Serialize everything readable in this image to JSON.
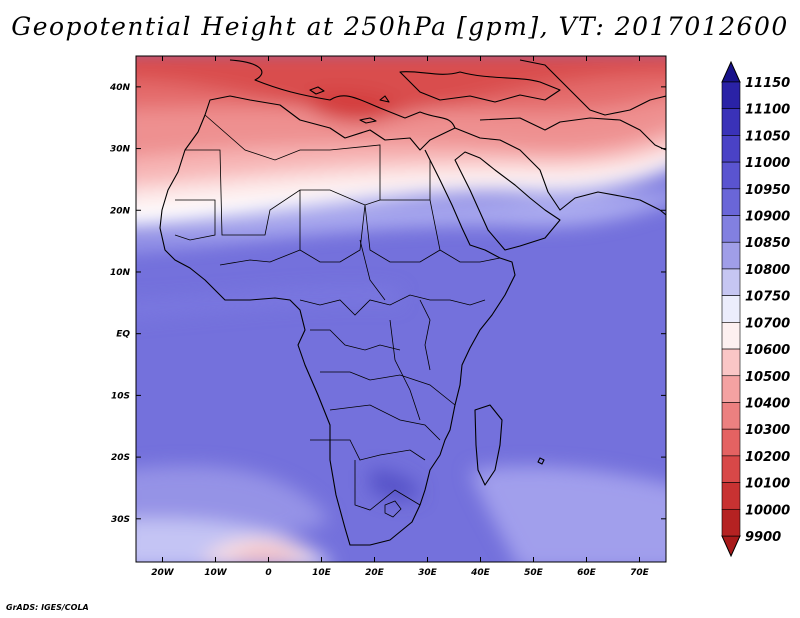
{
  "title": "Geopotential Height at 250hPa [gpm], VT: 2017012600",
  "credit": "GrADS: IGES/COLA",
  "map": {
    "variable": "Geopotential Height",
    "level": "250hPa",
    "units": "gpm",
    "valid_time": "2017012600",
    "lon_ticks": [
      "20W",
      "10W",
      "0",
      "10E",
      "20E",
      "30E",
      "40E",
      "50E",
      "60E",
      "70E"
    ],
    "lat_ticks": [
      "40N",
      "30N",
      "20N",
      "10N",
      "EQ",
      "10S",
      "20S",
      "30S"
    ]
  },
  "colorbar": {
    "labels": [
      "11150",
      "11100",
      "11050",
      "11000",
      "10950",
      "10900",
      "10850",
      "10800",
      "10750",
      "10700",
      "10600",
      "10500",
      "10400",
      "10300",
      "10200",
      "10100",
      "10000",
      "9900"
    ],
    "colors": [
      "#1a1490",
      "#2a22a6",
      "#3a32b8",
      "#4a42c6",
      "#5a54d0",
      "#6a66d8",
      "#8280e0",
      "#a09ee8",
      "#c6c6f2",
      "#ecedfc",
      "#fdf0f0",
      "#fac6c6",
      "#f4a2a2",
      "#ec8080",
      "#e46262",
      "#d84848",
      "#c83232",
      "#b52222"
    ],
    "top_arrow_color": "#18128a",
    "bottom_arrow_color": "#a81a1a"
  }
}
